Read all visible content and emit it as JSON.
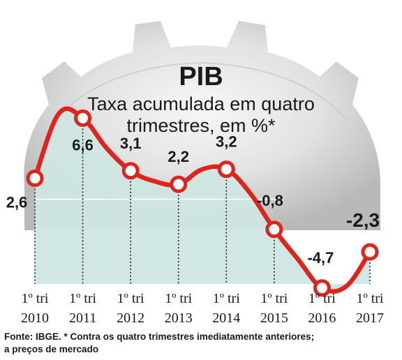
{
  "chart_data": {
    "type": "line",
    "title": "PIB",
    "subtitle_line1": "Taxa acumulada em quatro",
    "subtitle_line2": "trimestres, em %*",
    "xlabel": "",
    "ylabel": "",
    "ylim": [
      -5.5,
      7.5
    ],
    "grid": true,
    "categories": [
      {
        "quarter": "1º tri",
        "year": "2010"
      },
      {
        "quarter": "1º tri",
        "year": "2011"
      },
      {
        "quarter": "1º tri",
        "year": "2012"
      },
      {
        "quarter": "1º tri",
        "year": "2013"
      },
      {
        "quarter": "1º tri",
        "year": "2014"
      },
      {
        "quarter": "1º tri",
        "year": "2015"
      },
      {
        "quarter": "1º tri",
        "year": "2016"
      },
      {
        "quarter": "1º tri",
        "year": "2017"
      }
    ],
    "series": [
      {
        "x": [
          2010.0,
          2010.5,
          2011.0,
          2011.5,
          2012.0,
          2012.5,
          2013.0,
          2013.5,
          2014.0,
          2014.5,
          2015.0,
          2015.5,
          2016.0,
          2016.5,
          2017.0
        ],
        "values": [
          2.6,
          6.9,
          6.6,
          4.6,
          3.1,
          2.4,
          2.2,
          3.2,
          3.2,
          1.6,
          -0.8,
          -2.8,
          -4.7,
          -4.6,
          -2.3
        ]
      }
    ],
    "labeled_points": [
      {
        "x": 2010.0,
        "value": 2.6,
        "label": "2,6"
      },
      {
        "x": 2011.0,
        "value": 6.6,
        "label": "6,6"
      },
      {
        "x": 2012.0,
        "value": 3.1,
        "label": "3,1"
      },
      {
        "x": 2013.0,
        "value": 2.2,
        "label": "2,2"
      },
      {
        "x": 2014.0,
        "value": 3.2,
        "label": "3,2"
      },
      {
        "x": 2015.0,
        "value": -0.8,
        "label": "-0,8"
      },
      {
        "x": 2016.0,
        "value": -4.7,
        "label": "-4,7"
      },
      {
        "x": 2017.0,
        "value": -2.3,
        "label": "-2,3"
      }
    ],
    "colors": {
      "line": "#e0241b",
      "marker_fill": "#ffffff",
      "area_fill": "#cfe6e2",
      "gear": "#d4d4d4",
      "text": "#1a1a1a"
    }
  },
  "footer": {
    "line1": "Fonte: IBGE. * Contra os quatro trimestres imediatamente anteriores;",
    "line2": "a preços de mercado"
  }
}
